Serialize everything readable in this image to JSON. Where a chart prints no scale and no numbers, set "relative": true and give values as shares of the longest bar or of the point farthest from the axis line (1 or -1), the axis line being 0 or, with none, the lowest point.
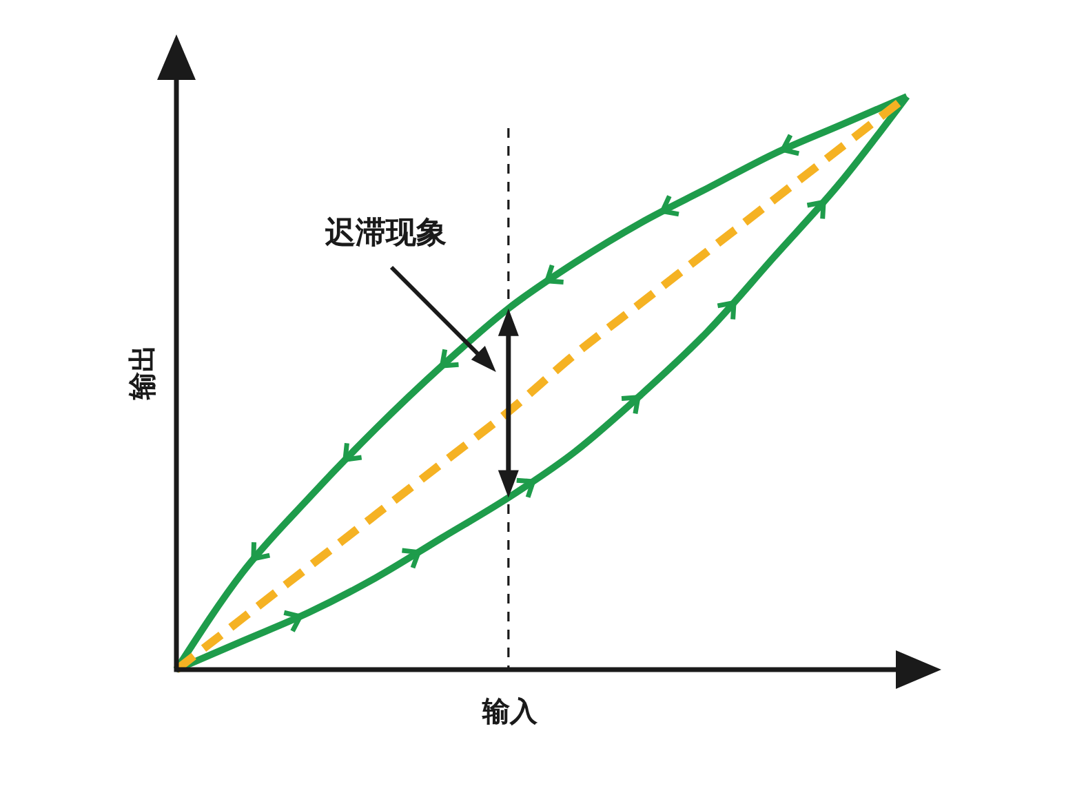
{
  "chart_data": {
    "type": "line",
    "relative": true,
    "xlabel": "输入",
    "ylabel": "输出",
    "annotations": [
      "迟滞现象"
    ],
    "categories": [
      null,
      null,
      null,
      null,
      null,
      null,
      null,
      null,
      null,
      null,
      null,
      null
    ],
    "series": [
      {
        "color": "#1e9c4b",
        "values": [
          0,
          0.05,
          0.1,
          0.16,
          0.23,
          0.3,
          0.38,
          0.48,
          0.59,
          0.72,
          0.85,
          1
        ]
      },
      {
        "color": "#1e9c4b",
        "values": [
          0,
          0.17,
          0.3,
          0.42,
          0.53,
          0.63,
          0.71,
          0.78,
          0.84,
          0.9,
          0.95,
          1
        ]
      },
      {
        "color": "#f5b223",
        "line_style": "dashed",
        "values": [
          0,
          0.09,
          0.18,
          0.27,
          0.36,
          0.45,
          0.55,
          0.64,
          0.73,
          0.82,
          0.91,
          1
        ]
      }
    ]
  }
}
